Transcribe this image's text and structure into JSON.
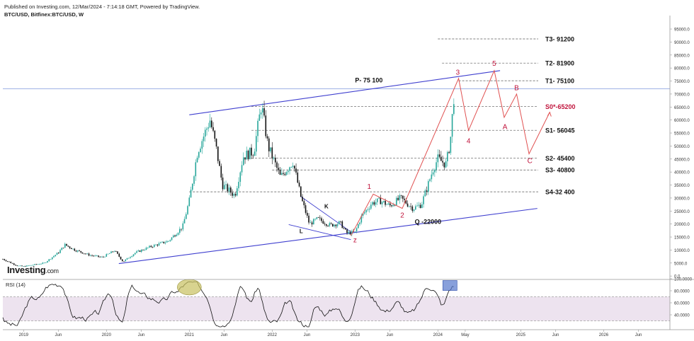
{
  "header": {
    "published": "Published on Investing.com, 12/Mar/2024 - 7:14:18 GMT, Powered by TradingView.",
    "symbol": "BTC/USD, Bitfinex:BTC/USD, W"
  },
  "branding": {
    "logo_main": "Investing",
    "logo_suffix": ".com"
  },
  "rsi": {
    "label": "RSI (14)",
    "ticks": [
      "100.0000",
      "80.0000",
      "60.0000",
      "40.0000"
    ]
  },
  "colors": {
    "bull": "#26a69a",
    "bear": "#111111",
    "channel": "#3f3fcf",
    "wave": "#e05050",
    "wave_label": "#c0143c",
    "rsi_band": "#ede3ef",
    "rsi_line": "#111111",
    "highlight_ellipse": "#c8c060",
    "highlight_box": "#5577cc"
  },
  "chart_data": {
    "type": "candlestick",
    "y_axis_ticks": [
      0,
      5000,
      10000,
      15000,
      20000,
      25000,
      30000,
      35000,
      40000,
      45000,
      50000,
      55000,
      60000,
      65000,
      70000,
      75000,
      80000,
      85000,
      90000,
      95000
    ],
    "y_axis_tick_labels": [
      "0.0",
      "5000.0",
      "10000.0",
      "15000.0",
      "20000.0",
      "25000.0",
      "30000.0",
      "35000.0",
      "40000.0",
      "45000.0",
      "50000.0",
      "55000.0",
      "60000.0",
      "65000.0",
      "70000.0",
      "75000.0",
      "80000.0",
      "85000.0",
      "90000.0",
      "95000.0"
    ],
    "x_axis_labels": [
      {
        "label": "2019",
        "t": 2019.0
      },
      {
        "label": "Jun",
        "t": 2019.42
      },
      {
        "label": "2020",
        "t": 2020.0
      },
      {
        "label": "Jun",
        "t": 2020.42
      },
      {
        "label": "2021",
        "t": 2021.0
      },
      {
        "label": "Jun",
        "t": 2021.42
      },
      {
        "label": "2022",
        "t": 2022.0
      },
      {
        "label": "Jun",
        "t": 2022.42
      },
      {
        "label": "2023",
        "t": 2023.0
      },
      {
        "label": "Jun",
        "t": 2023.42
      },
      {
        "label": "2024",
        "t": 2024.0
      },
      {
        "label": "May",
        "t": 2024.33
      },
      {
        "label": "2025",
        "t": 2025.0
      },
      {
        "label": "Jun",
        "t": 2025.42
      },
      {
        "label": "2026",
        "t": 2026.0
      },
      {
        "label": "Jun",
        "t": 2026.42
      }
    ],
    "x_range": [
      2018.75,
      2026.8
    ],
    "y_range": [
      -500,
      98000
    ],
    "price_path": [
      [
        2018.75,
        6500
      ],
      [
        2018.92,
        4000
      ],
      [
        2019.0,
        3700
      ],
      [
        2019.25,
        5000
      ],
      [
        2019.42,
        9000
      ],
      [
        2019.5,
        12000
      ],
      [
        2019.62,
        10000
      ],
      [
        2019.8,
        8000
      ],
      [
        2019.95,
        7200
      ],
      [
        2020.1,
        9800
      ],
      [
        2020.2,
        5500
      ],
      [
        2020.35,
        9000
      ],
      [
        2020.55,
        11500
      ],
      [
        2020.75,
        13500
      ],
      [
        2020.92,
        19000
      ],
      [
        2021.0,
        29000
      ],
      [
        2021.1,
        48000
      ],
      [
        2021.25,
        60000
      ],
      [
        2021.32,
        50000
      ],
      [
        2021.4,
        35000
      ],
      [
        2021.55,
        31000
      ],
      [
        2021.65,
        46000
      ],
      [
        2021.78,
        48000
      ],
      [
        2021.87,
        66000
      ],
      [
        2021.95,
        50000
      ],
      [
        2022.0,
        46000
      ],
      [
        2022.1,
        38000
      ],
      [
        2022.25,
        44000
      ],
      [
        2022.35,
        30000
      ],
      [
        2022.45,
        20000
      ],
      [
        2022.55,
        22000
      ],
      [
        2022.7,
        19500
      ],
      [
        2022.82,
        20500
      ],
      [
        2022.9,
        16500
      ],
      [
        2023.0,
        16800
      ],
      [
        2023.08,
        23000
      ],
      [
        2023.2,
        28000
      ],
      [
        2023.3,
        29000
      ],
      [
        2023.42,
        27000
      ],
      [
        2023.55,
        30000
      ],
      [
        2023.7,
        26000
      ],
      [
        2023.8,
        27500
      ],
      [
        2023.88,
        35000
      ],
      [
        2023.95,
        42000
      ],
      [
        2024.0,
        45000
      ],
      [
        2024.1,
        43000
      ],
      [
        2024.15,
        52000
      ],
      [
        2024.2,
        72000
      ]
    ],
    "horizontal_levels": [
      {
        "value": 91200,
        "label": "T3- 91200",
        "color": "#111111",
        "t_start": 2024.0
      },
      {
        "value": 81900,
        "label": "T2- 81900",
        "color": "#111111",
        "t_start": 2024.05
      },
      {
        "value": 75100,
        "label": "T1- 75100",
        "color": "#111111",
        "t_start": 2024.25
      },
      {
        "value": 65200,
        "label": "S0*-65200",
        "color": "#c0143c",
        "t_start": 2021.75
      },
      {
        "value": 56045,
        "label": "S1- 56045",
        "color": "#111111",
        "t_start": 2021.75
      },
      {
        "value": 45400,
        "label": "S2- 45400",
        "color": "#111111",
        "t_start": 2021.75
      },
      {
        "value": 40800,
        "label": "S3- 40800",
        "color": "#111111",
        "t_start": 2022.0
      },
      {
        "value": 32400,
        "label": "S4-32 400",
        "color": "#111111",
        "t_start": 2021.0
      }
    ],
    "horizontal_line_blue": 72000,
    "channel_upper": [
      [
        2021.0,
        62000
      ],
      [
        2024.75,
        79000
      ]
    ],
    "channel_lower": [
      [
        2020.15,
        4800
      ],
      [
        2025.2,
        26000
      ]
    ],
    "wedge_upper": [
      [
        2022.35,
        30500
      ],
      [
        2022.95,
        17000
      ]
    ],
    "wedge_lower": [
      [
        2022.2,
        19800
      ],
      [
        2022.95,
        14000
      ]
    ],
    "channel_labels": [
      {
        "text": "P- 75 100",
        "t": 2023.0,
        "v": 74500
      },
      {
        "text": "Q -22000",
        "t": 2023.72,
        "v": 20000
      }
    ],
    "pattern_labels": [
      {
        "text": "K",
        "t": 2022.63,
        "v": 26000
      },
      {
        "text": "L",
        "t": 2022.33,
        "v": 16500
      }
    ],
    "wave_path": [
      [
        2022.95,
        15500
      ],
      [
        2023.22,
        31500
      ],
      [
        2023.57,
        26000
      ],
      [
        2024.25,
        76000
      ],
      [
        2024.37,
        56000
      ],
      [
        2024.68,
        79000
      ],
      [
        2024.8,
        61000
      ],
      [
        2024.95,
        70000
      ],
      [
        2025.1,
        47000
      ],
      [
        2025.35,
        63000
      ]
    ],
    "wave_labels": [
      {
        "text": "z",
        "t": 2023.0,
        "v": 13000
      },
      {
        "text": "1",
        "t": 2023.17,
        "v": 33500
      },
      {
        "text": "2",
        "t": 2023.57,
        "v": 22500
      },
      {
        "text": "3",
        "t": 2024.24,
        "v": 77500
      },
      {
        "text": "4",
        "t": 2024.37,
        "v": 51000
      },
      {
        "text": "5",
        "t": 2024.68,
        "v": 80800
      },
      {
        "text": "B",
        "t": 2024.95,
        "v": 71500
      },
      {
        "text": "A",
        "t": 2024.81,
        "v": 56500
      },
      {
        "text": "C",
        "t": 2025.11,
        "v": 43500
      }
    ]
  }
}
